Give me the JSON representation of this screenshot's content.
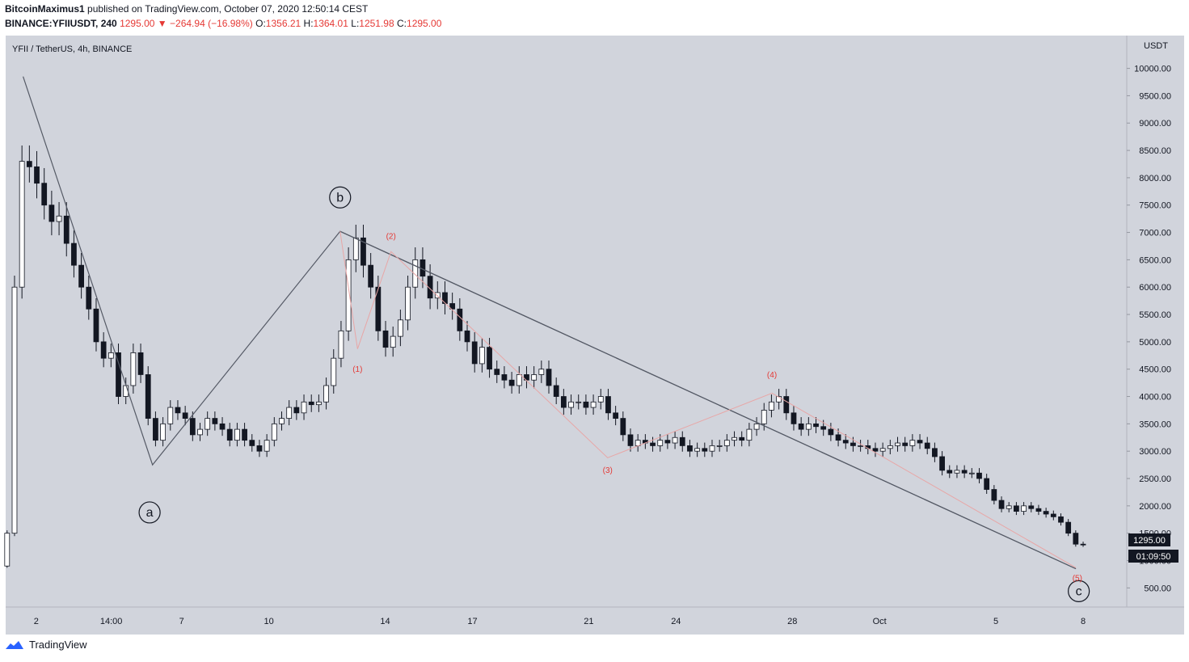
{
  "header": {
    "author": "BitcoinMaximus1",
    "published_text": "published on TradingView.com, October 07, 2020 12:50:14 CEST",
    "symbol": "BINANCE:YFIIUSDT",
    "interval": "240",
    "last": "1295.00",
    "arrow": "▼",
    "change": "−264.94 (−16.98%)",
    "o_label": "O:",
    "o_value": "1356.21",
    "h_label": "H:",
    "h_value": "1364.01",
    "l_label": "L:",
    "l_value": "1251.98",
    "c_label": "C:",
    "c_value": "1295.00"
  },
  "chart_data": {
    "type": "candlestick",
    "title": "YFII / TetherUS, 4h, BINANCE",
    "currency": "USDT",
    "ylim": [
      150,
      10600
    ],
    "y_ticks": [
      500,
      1000,
      1500,
      2000,
      2500,
      3000,
      3500,
      4000,
      4500,
      5000,
      5500,
      6000,
      6500,
      7000,
      7500,
      8000,
      8500,
      9000,
      9500,
      10000
    ],
    "y_tick_labels": [
      "500.00",
      "1000.00",
      "1500.00",
      "2000.00",
      "2500.00",
      "3000.00",
      "3500.00",
      "4000.00",
      "4500.00",
      "5000.00",
      "5500.00",
      "6000.00",
      "6500.00",
      "7000.00",
      "7500.00",
      "8000.00",
      "8500.00",
      "9000.00",
      "9500.00",
      "10000.00"
    ],
    "x_range": [
      -0.05,
      38.5
    ],
    "x_ticks": [
      {
        "t": 1,
        "label": "2"
      },
      {
        "t": 3.58,
        "label": "14:00"
      },
      {
        "t": 6,
        "label": "7"
      },
      {
        "t": 9,
        "label": "10"
      },
      {
        "t": 13,
        "label": "14"
      },
      {
        "t": 16,
        "label": "17"
      },
      {
        "t": 20,
        "label": "21"
      },
      {
        "t": 23,
        "label": "24"
      },
      {
        "t": 27,
        "label": "28"
      },
      {
        "t": 30,
        "label": "Oct"
      },
      {
        "t": 34,
        "label": "5"
      },
      {
        "t": 37,
        "label": "8"
      }
    ],
    "last_price_label": "1295.00",
    "countdown_label": "01:09:50",
    "waves_major": [
      {
        "t": 0.55,
        "p": 9850
      },
      {
        "t": 5.0,
        "p": 2750
      },
      {
        "t": 11.45,
        "p": 7020
      },
      {
        "t": 36.75,
        "p": 850
      }
    ],
    "wave_major_labels": [
      {
        "text": "a",
        "t": 4.9,
        "p": 1880
      },
      {
        "text": "b",
        "t": 11.45,
        "p": 7640
      },
      {
        "text": "c",
        "t": 36.85,
        "p": 440
      }
    ],
    "waves_minor": [
      {
        "t": 11.45,
        "p": 7020
      },
      {
        "t": 12.05,
        "p": 4870
      },
      {
        "t": 13.2,
        "p": 6650
      },
      {
        "t": 20.65,
        "p": 2880
      },
      {
        "t": 26.3,
        "p": 4060
      },
      {
        "t": 36.75,
        "p": 870
      }
    ],
    "wave_minor_labels": [
      {
        "text": "(1)",
        "t": 12.05,
        "p": 4450
      },
      {
        "text": "(2)",
        "t": 13.2,
        "p": 6880
      },
      {
        "text": "(3)",
        "t": 20.65,
        "p": 2600
      },
      {
        "text": "(4)",
        "t": 26.3,
        "p": 4350
      },
      {
        "text": "(5)",
        "t": 36.8,
        "p": 630
      }
    ],
    "candles_close": [
      1500,
      6000,
      8300,
      8200,
      7900,
      7500,
      7200,
      7300,
      6800,
      6400,
      6000,
      5600,
      5000,
      4700,
      4800,
      4000,
      4200,
      4800,
      4400,
      3600,
      3200,
      3500,
      3800,
      3700,
      3600,
      3300,
      3400,
      3600,
      3500,
      3400,
      3200,
      3400,
      3200,
      3100,
      3000,
      3200,
      3500,
      3600,
      3800,
      3700,
      3900,
      3850,
      3900,
      4200,
      4700,
      5200,
      6500,
      6900,
      6400,
      6000,
      5200,
      4900,
      5100,
      5400,
      6000,
      6500,
      6200,
      5800,
      5900,
      5700,
      5600,
      5200,
      5000,
      4600,
      4900,
      4500,
      4400,
      4300,
      4200,
      4400,
      4300,
      4400,
      4500,
      4200,
      4000,
      3800,
      3900,
      3900,
      3800,
      3900,
      4000,
      3700,
      3600,
      3300,
      3100,
      3200,
      3150,
      3100,
      3200,
      3150,
      3250,
      3100,
      3000,
      3050,
      3000,
      3100,
      3100,
      3200,
      3250,
      3200,
      3400,
      3500,
      3750,
      3900,
      4000,
      3700,
      3500,
      3400,
      3500,
      3450,
      3400,
      3300,
      3200,
      3150,
      3100,
      3100,
      3050,
      3000,
      3050,
      3100,
      3150,
      3100,
      3200,
      3150,
      3050,
      2900,
      2650,
      2600,
      2650,
      2600,
      2600,
      2500,
      2300,
      2100,
      1950,
      2000,
      1900,
      2000,
      1950,
      1900,
      1850,
      1800,
      1700,
      1500,
      1300,
      1295
    ],
    "volume_visible": false
  },
  "footer": {
    "brand": "TradingView"
  },
  "colors": {
    "background": "#d1d4dc",
    "candle_up": "#ffffff",
    "candle_down": "#131722",
    "wave_major": "#555a66",
    "wave_minor": "#e8a6a6",
    "wave_minor_label": "#e53935",
    "price_label_bg": "#131722"
  }
}
